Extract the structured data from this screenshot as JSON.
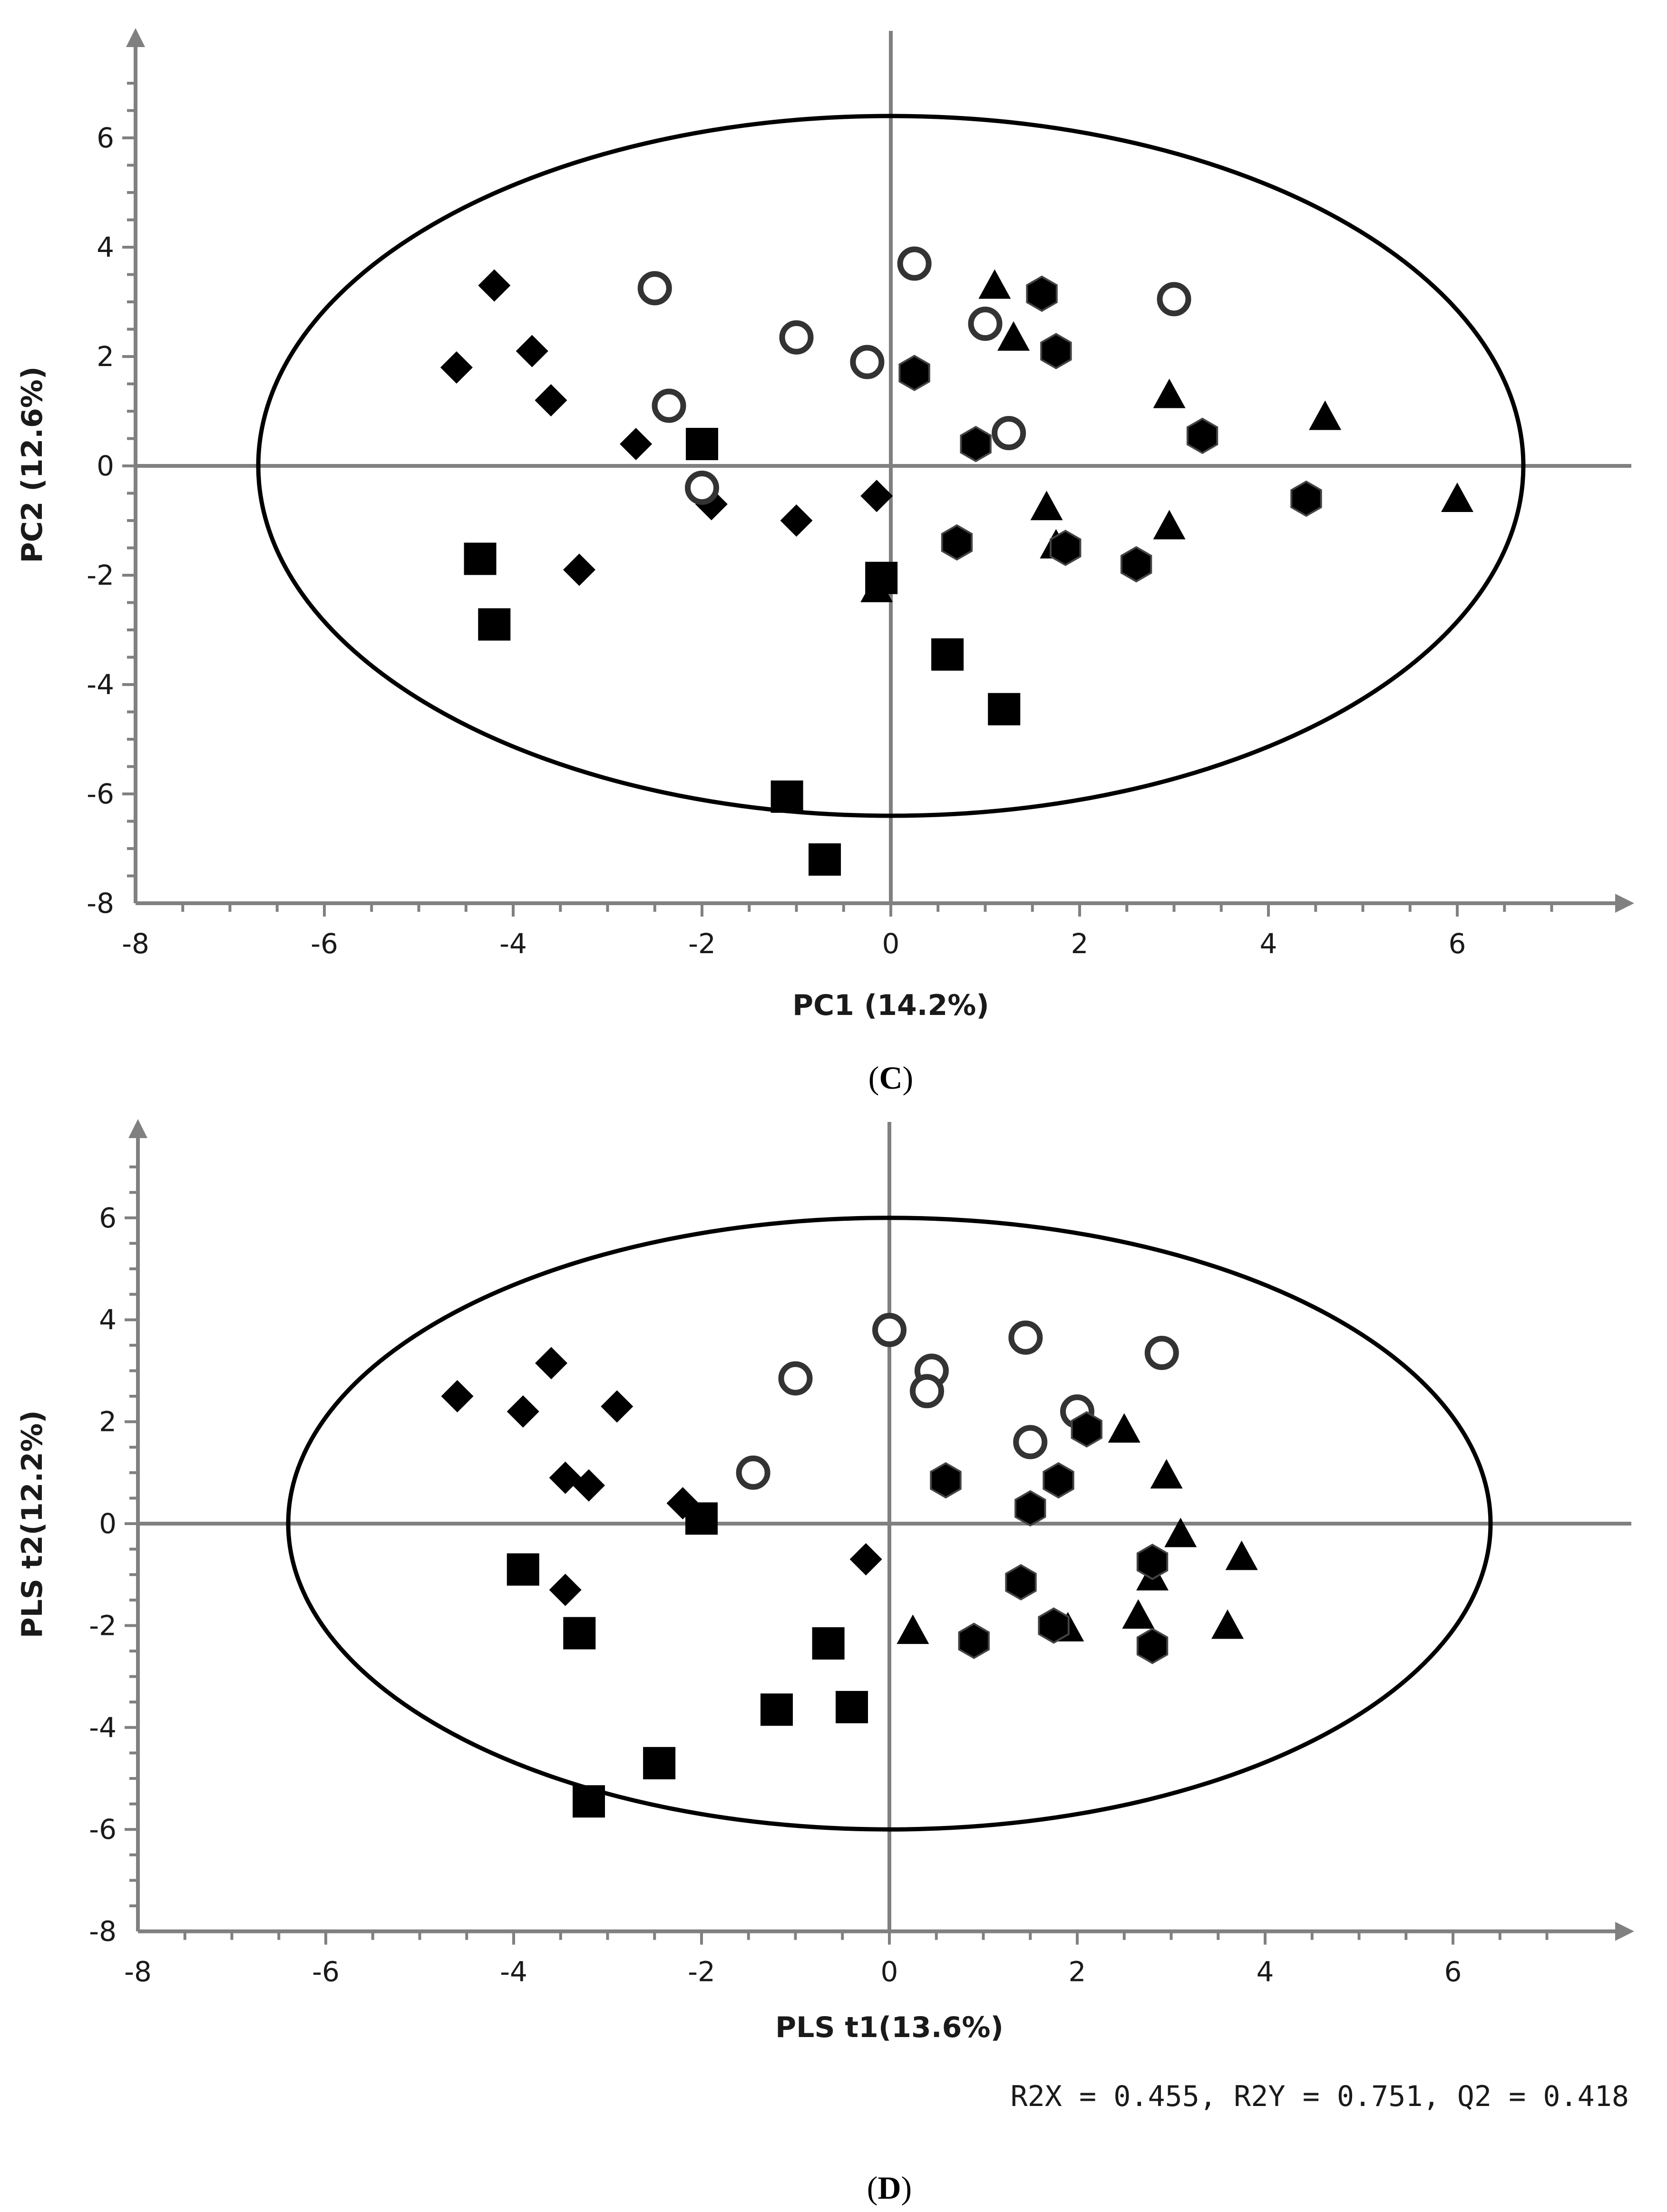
{
  "chart_data": [
    {
      "type": "scatter",
      "panel_label": "(C)",
      "xlabel": "PC1 (14.2%)",
      "ylabel": "PC2 (12.6%)",
      "xlim": [
        -8,
        7
      ],
      "ylim": [
        -8,
        7
      ],
      "xticks": [
        "-8",
        "-6",
        "-4",
        "-2",
        "0",
        "2",
        "4",
        "6"
      ],
      "yticks": [
        "-8",
        "-6",
        "-4",
        "-2",
        "0",
        "2",
        "4",
        "6"
      ],
      "ellipse": {
        "cx": 0,
        "cy": 0,
        "rx": 6.7,
        "ry": 6.4
      },
      "stats": "",
      "series": [
        {
          "marker": "diamond",
          "points": [
            [
              -4.2,
              3.3
            ],
            [
              -4.6,
              1.8
            ],
            [
              -3.8,
              2.1
            ],
            [
              -3.6,
              1.2
            ],
            [
              -2.7,
              0.4
            ],
            [
              -3.3,
              -1.9
            ],
            [
              -1.9,
              -0.7
            ],
            [
              -1.0,
              -1.0
            ],
            [
              -0.15,
              -0.55
            ]
          ]
        },
        {
          "marker": "circle",
          "points": [
            [
              -2.5,
              3.25
            ],
            [
              -2.35,
              1.1
            ],
            [
              -2.0,
              -0.4
            ],
            [
              -1.0,
              2.35
            ],
            [
              -0.25,
              1.9
            ],
            [
              0.25,
              3.7
            ],
            [
              1.0,
              2.6
            ],
            [
              1.25,
              0.6
            ],
            [
              3.0,
              3.05
            ]
          ]
        },
        {
          "marker": "square",
          "points": [
            [
              -2.0,
              0.4
            ],
            [
              -4.35,
              -1.7
            ],
            [
              -4.2,
              -2.9
            ],
            [
              -0.1,
              -2.05
            ],
            [
              0.6,
              -3.45
            ],
            [
              1.2,
              -4.45
            ],
            [
              -1.1,
              -6.05
            ],
            [
              -0.7,
              -7.2
            ]
          ]
        },
        {
          "marker": "triangle",
          "points": [
            [
              1.1,
              3.3
            ],
            [
              1.3,
              2.35
            ],
            [
              2.95,
              1.3
            ],
            [
              4.6,
              0.9
            ],
            [
              1.65,
              -0.75
            ],
            [
              1.75,
              -1.45
            ],
            [
              2.95,
              -1.1
            ],
            [
              6.0,
              -0.6
            ],
            [
              -0.15,
              -2.25
            ]
          ]
        },
        {
          "marker": "hexagon",
          "points": [
            [
              1.6,
              3.15
            ],
            [
              1.75,
              2.1
            ],
            [
              0.25,
              1.7
            ],
            [
              0.9,
              0.4
            ],
            [
              3.3,
              0.55
            ],
            [
              4.4,
              -0.6
            ],
            [
              0.7,
              -1.4
            ],
            [
              1.85,
              -1.5
            ],
            [
              2.6,
              -1.8
            ]
          ]
        }
      ]
    },
    {
      "type": "scatter",
      "panel_label": "(D)",
      "xlabel": "PLS t1(13.6%)",
      "ylabel": "PLS t2(12.2%)",
      "xlim": [
        -8,
        7
      ],
      "ylim": [
        -8,
        7
      ],
      "xticks": [
        "-8",
        "-6",
        "-4",
        "-2",
        "0",
        "2",
        "4",
        "6"
      ],
      "yticks": [
        "-8",
        "-6",
        "-4",
        "-2",
        "0",
        "2",
        "4",
        "6"
      ],
      "ellipse": {
        "cx": 0,
        "cy": 0,
        "rx": 6.4,
        "ry": 6.0
      },
      "stats": "R2X = 0.455, R2Y = 0.751, Q2 = 0.418",
      "series": [
        {
          "marker": "diamond",
          "points": [
            [
              -4.6,
              2.5
            ],
            [
              -3.9,
              2.2
            ],
            [
              -3.6,
              3.15
            ],
            [
              -2.9,
              2.3
            ],
            [
              -3.45,
              0.9
            ],
            [
              -3.2,
              0.75
            ],
            [
              -2.2,
              0.4
            ],
            [
              -3.45,
              -1.3
            ],
            [
              -0.25,
              -0.7
            ]
          ]
        },
        {
          "marker": "circle",
          "points": [
            [
              0.0,
              3.8
            ],
            [
              0.45,
              3.0
            ],
            [
              0.4,
              2.6
            ],
            [
              1.45,
              3.65
            ],
            [
              2.9,
              3.35
            ],
            [
              -1.0,
              2.85
            ],
            [
              -1.45,
              1.0
            ],
            [
              2.0,
              2.2
            ],
            [
              1.5,
              1.6
            ]
          ]
        },
        {
          "marker": "square",
          "points": [
            [
              -2.0,
              0.1
            ],
            [
              -3.9,
              -0.9
            ],
            [
              -3.3,
              -2.15
            ],
            [
              -0.65,
              -2.35
            ],
            [
              -1.2,
              -3.65
            ],
            [
              -0.4,
              -3.6
            ],
            [
              -2.45,
              -4.7
            ],
            [
              -3.2,
              -5.45
            ]
          ]
        },
        {
          "marker": "triangle",
          "points": [
            [
              2.5,
              1.85
            ],
            [
              2.95,
              0.95
            ],
            [
              3.1,
              -0.2
            ],
            [
              3.75,
              -0.65
            ],
            [
              2.8,
              -1.05
            ],
            [
              2.65,
              -1.8
            ],
            [
              3.6,
              -2.0
            ],
            [
              1.9,
              -2.05
            ],
            [
              0.25,
              -2.1
            ]
          ]
        },
        {
          "marker": "hexagon",
          "points": [
            [
              2.1,
              1.85
            ],
            [
              0.6,
              0.85
            ],
            [
              1.8,
              0.85
            ],
            [
              1.5,
              0.3
            ],
            [
              2.8,
              -0.75
            ],
            [
              1.4,
              -1.15
            ],
            [
              1.75,
              -2.0
            ],
            [
              0.9,
              -2.3
            ],
            [
              2.8,
              -2.4
            ]
          ]
        }
      ]
    }
  ]
}
